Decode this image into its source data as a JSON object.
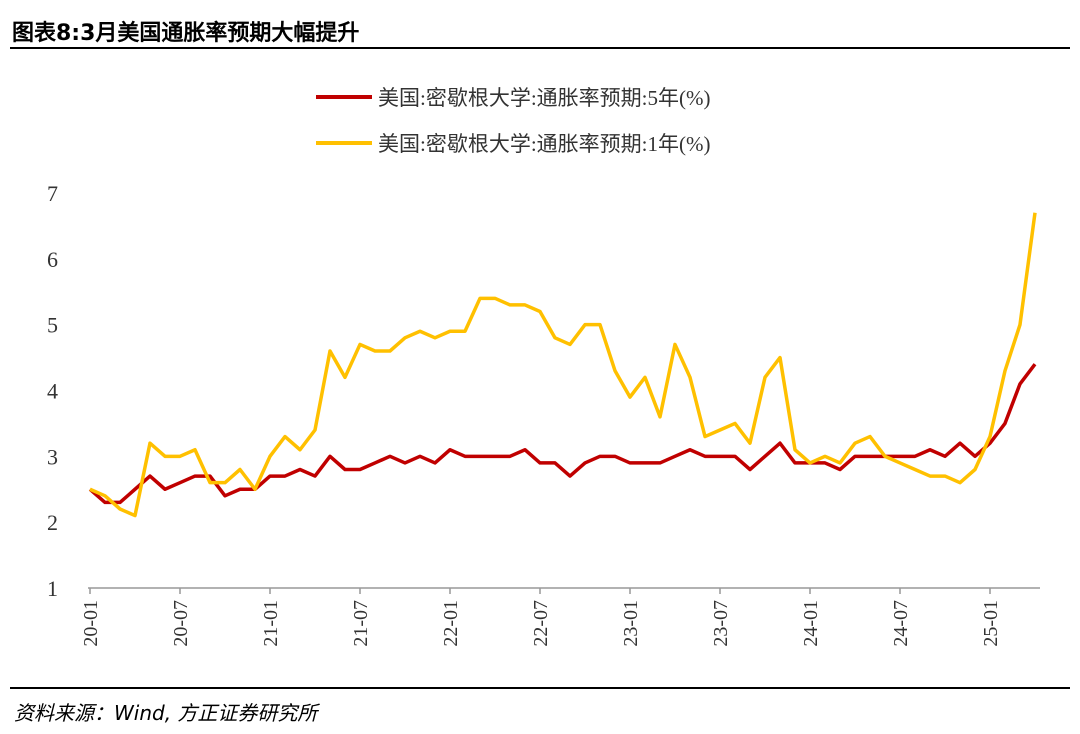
{
  "chart_data": {
    "type": "line",
    "title": "图表8:3月美国通胀率预期大幅提升",
    "source": "资料来源：Wind, 方正证券研究所",
    "categories": [
      "20-01",
      null,
      null,
      null,
      null,
      null,
      "20-07",
      null,
      null,
      null,
      null,
      null,
      "21-01",
      null,
      null,
      null,
      null,
      null,
      "21-07",
      null,
      null,
      null,
      null,
      null,
      "22-01",
      null,
      null,
      null,
      null,
      null,
      "22-07",
      null,
      null,
      null,
      null,
      null,
      "23-01",
      null,
      null,
      null,
      null,
      null,
      "23-07",
      null,
      null,
      null,
      null,
      null,
      "24-01",
      null,
      null,
      null,
      null,
      null,
      "24-07",
      null,
      null,
      null,
      null,
      null,
      "25-01",
      null,
      null,
      null
    ],
    "series": [
      {
        "name": "美国:密歇根大学:通胀率预期:5年(%)",
        "color": "#c00000",
        "values": [
          2.5,
          2.3,
          2.3,
          2.5,
          2.7,
          2.5,
          2.6,
          2.7,
          2.7,
          2.4,
          2.5,
          2.5,
          2.7,
          2.7,
          2.8,
          2.7,
          3.0,
          2.8,
          2.8,
          2.9,
          3.0,
          2.9,
          3.0,
          2.9,
          3.1,
          3.0,
          3.0,
          3.0,
          3.0,
          3.1,
          2.9,
          2.9,
          2.7,
          2.9,
          3.0,
          3.0,
          2.9,
          2.9,
          2.9,
          3.0,
          3.1,
          3.0,
          3.0,
          3.0,
          2.8,
          3.0,
          3.2,
          2.9,
          2.9,
          2.9,
          2.8,
          3.0,
          3.0,
          3.0,
          3.0,
          3.0,
          3.1,
          3.0,
          3.2,
          3.0,
          3.2,
          3.5,
          4.1,
          4.4
        ]
      },
      {
        "name": "美国:密歇根大学:通胀率预期:1年(%)",
        "color": "#ffc000",
        "values": [
          2.5,
          2.4,
          2.2,
          2.1,
          3.2,
          3.0,
          3.0,
          3.1,
          2.6,
          2.6,
          2.8,
          2.5,
          3.0,
          3.3,
          3.1,
          3.4,
          4.6,
          4.2,
          4.7,
          4.6,
          4.6,
          4.8,
          4.9,
          4.8,
          4.9,
          4.9,
          5.4,
          5.4,
          5.3,
          5.3,
          5.2,
          4.8,
          4.7,
          5.0,
          5.0,
          4.3,
          3.9,
          4.2,
          3.6,
          4.7,
          4.2,
          3.3,
          3.4,
          3.5,
          3.2,
          4.2,
          4.5,
          3.1,
          2.9,
          3.0,
          2.9,
          3.2,
          3.3,
          3.0,
          2.9,
          2.8,
          2.7,
          2.7,
          2.6,
          2.8,
          3.3,
          4.3,
          5.0,
          6.7
        ]
      }
    ],
    "ylim": [
      1,
      7
    ],
    "yticks": [
      1,
      2,
      3,
      4,
      5,
      6,
      7
    ],
    "grid": false,
    "legend": "top"
  }
}
